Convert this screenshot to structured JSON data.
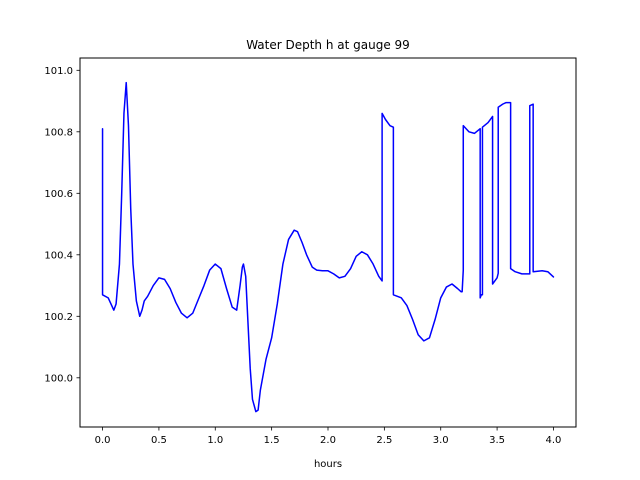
{
  "chart_data": {
    "type": "line",
    "title": "Water Depth h at gauge 99",
    "xlabel": "hours",
    "ylabel": "",
    "xlim": [
      -0.2,
      4.2
    ],
    "ylim": [
      99.84,
      101.04
    ],
    "xticks": [
      0.0,
      0.5,
      1.0,
      1.5,
      2.0,
      2.5,
      3.0,
      3.5,
      4.0
    ],
    "xtick_labels": [
      "0.0",
      "0.5",
      "1.0",
      "1.5",
      "2.0",
      "2.5",
      "3.0",
      "3.5",
      "4.0"
    ],
    "yticks": [
      100.0,
      100.2,
      100.4,
      100.6,
      100.8,
      101.0
    ],
    "ytick_labels": [
      "100.0",
      "100.2",
      "100.4",
      "100.6",
      "100.8",
      "101.0"
    ],
    "grid": false,
    "series": [
      {
        "color": "#0000ff",
        "x": [
          0.0,
          0.0,
          0.05,
          0.1,
          0.12,
          0.15,
          0.17,
          0.19,
          0.21,
          0.23,
          0.25,
          0.27,
          0.3,
          0.33,
          0.35,
          0.37,
          0.4,
          0.45,
          0.5,
          0.55,
          0.6,
          0.65,
          0.7,
          0.75,
          0.8,
          0.85,
          0.9,
          0.95,
          1.0,
          1.05,
          1.1,
          1.15,
          1.19,
          1.22,
          1.24,
          1.25,
          1.27,
          1.29,
          1.31,
          1.33,
          1.36,
          1.38,
          1.4,
          1.45,
          1.5,
          1.55,
          1.6,
          1.65,
          1.7,
          1.73,
          1.77,
          1.81,
          1.86,
          1.9,
          1.95,
          2.0,
          2.05,
          2.1,
          2.15,
          2.2,
          2.25,
          2.3,
          2.35,
          2.4,
          2.45,
          2.48,
          2.48,
          2.51,
          2.55,
          2.58,
          2.58,
          2.65,
          2.7,
          2.75,
          2.8,
          2.85,
          2.9,
          2.95,
          3.0,
          3.05,
          3.1,
          3.15,
          3.18,
          3.19,
          3.2,
          3.2,
          3.25,
          3.3,
          3.35,
          3.35,
          3.36,
          3.37,
          3.37,
          3.42,
          3.46,
          3.46,
          3.5,
          3.51,
          3.51,
          3.55,
          3.58,
          3.62,
          3.62,
          3.66,
          3.72,
          3.79,
          3.79,
          3.82,
          3.82,
          3.9,
          3.95,
          4.0
        ],
        "y": [
          100.81,
          100.27,
          100.26,
          100.22,
          100.24,
          100.37,
          100.6,
          100.86,
          100.96,
          100.82,
          100.55,
          100.37,
          100.25,
          100.2,
          100.22,
          100.25,
          100.265,
          100.3,
          100.325,
          100.32,
          100.29,
          100.245,
          100.21,
          100.195,
          100.21,
          100.255,
          100.3,
          100.35,
          100.37,
          100.355,
          100.29,
          100.23,
          100.22,
          100.3,
          100.36,
          100.37,
          100.33,
          100.18,
          100.03,
          99.93,
          99.89,
          99.895,
          99.96,
          100.06,
          100.13,
          100.24,
          100.37,
          100.45,
          100.48,
          100.475,
          100.44,
          100.4,
          100.36,
          100.35,
          100.348,
          100.348,
          100.338,
          100.325,
          100.33,
          100.355,
          100.395,
          100.41,
          100.4,
          100.37,
          100.33,
          100.315,
          100.86,
          100.84,
          100.82,
          100.815,
          100.27,
          100.26,
          100.235,
          100.19,
          100.14,
          100.12,
          100.13,
          100.19,
          100.26,
          100.295,
          100.305,
          100.29,
          100.28,
          100.28,
          100.35,
          100.82,
          100.8,
          100.795,
          100.81,
          100.26,
          100.27,
          100.27,
          100.815,
          100.83,
          100.85,
          100.305,
          100.325,
          100.34,
          100.88,
          100.89,
          100.895,
          100.895,
          100.355,
          100.345,
          100.338,
          100.338,
          100.885,
          100.89,
          100.345,
          100.348,
          100.345,
          100.328
        ]
      }
    ]
  }
}
